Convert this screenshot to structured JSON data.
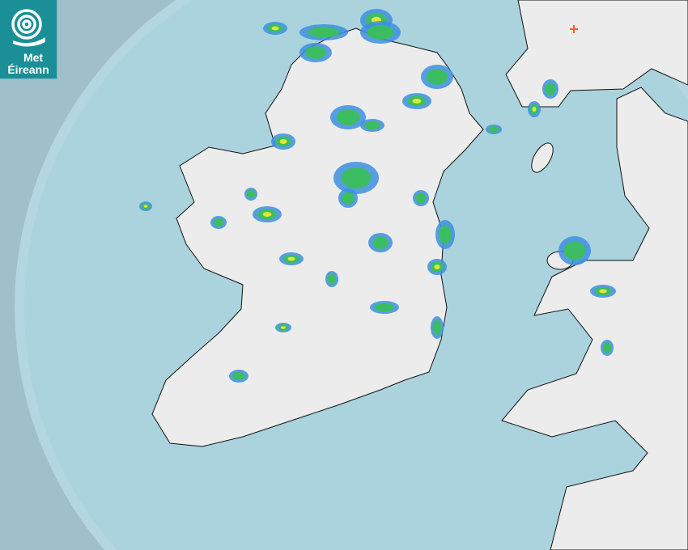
{
  "logo": {
    "line1": "Met",
    "line2": "Éireann",
    "background": "#1a8f98"
  },
  "map": {
    "type": "weather-radar",
    "colors": {
      "outside_radar": "#9fbfca",
      "radar_coverage": "#b3d6e0",
      "sea": "#aad3de",
      "land": "#ececec",
      "rain_light": "#3d8fe0",
      "rain_moderate": "#3cbf5a",
      "rain_heavy": "#e8e83a",
      "marker": "#ff5a1f"
    },
    "marker_icon": "plus-icon"
  }
}
